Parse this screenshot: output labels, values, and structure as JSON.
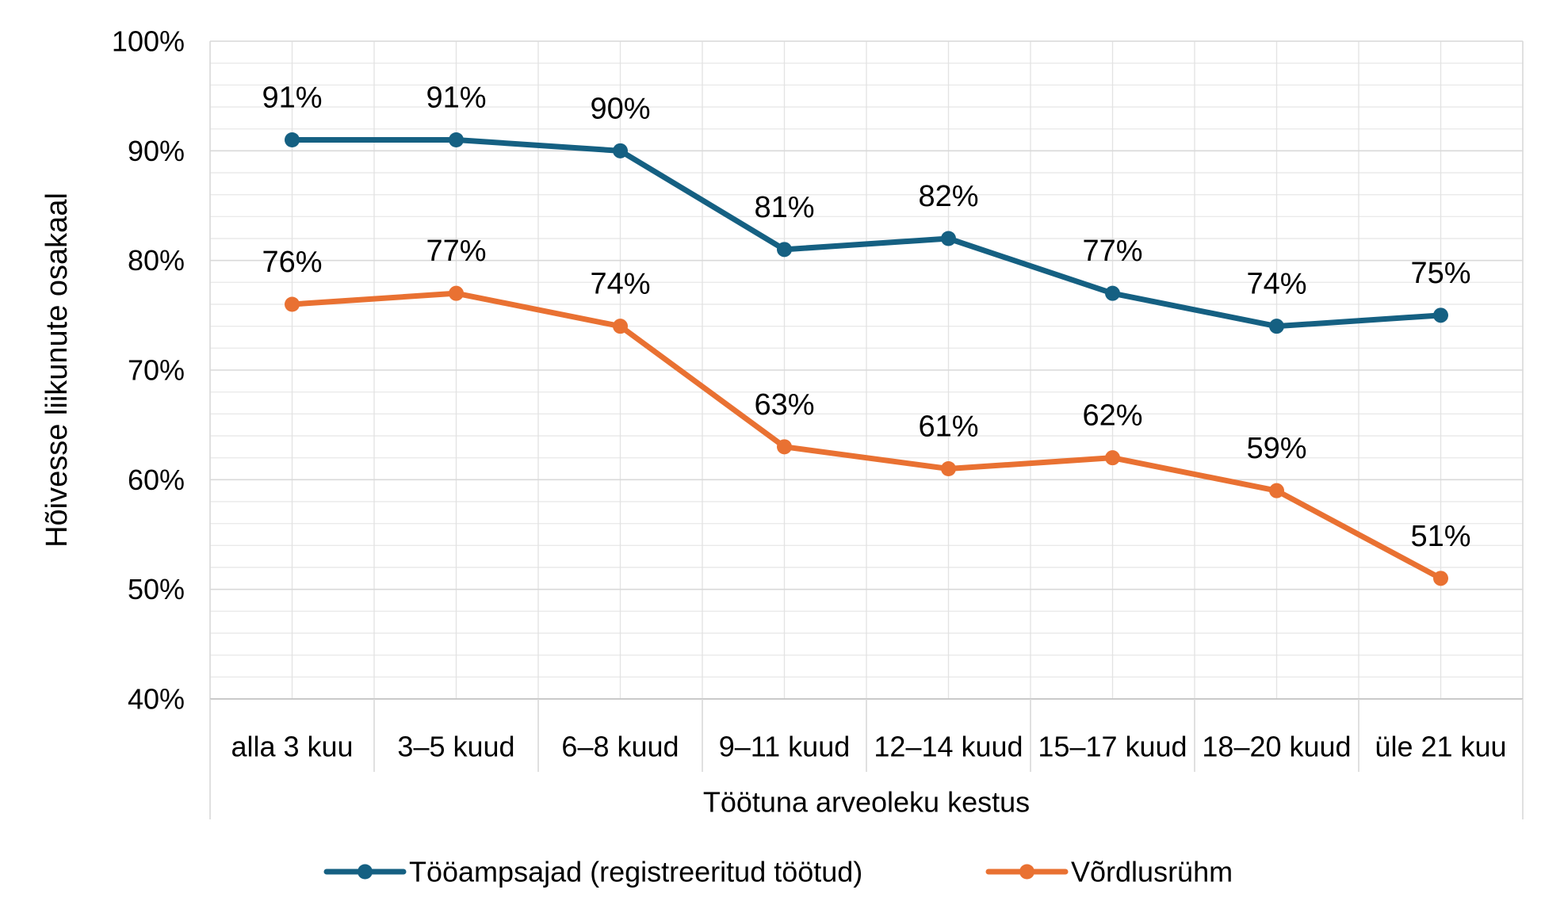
{
  "chart_data": {
    "type": "line",
    "categories": [
      "alla 3 kuu",
      "3–5 kuud",
      "6–8 kuud",
      "9–11 kuud",
      "12–14 kuud",
      "15–17 kuud",
      "18–20 kuud",
      "üle 21 kuu"
    ],
    "series": [
      {
        "name": "Tööampsajad (registreeritud töötud)",
        "color": "#156082",
        "values": [
          91,
          91,
          90,
          81,
          82,
          77,
          74,
          75
        ],
        "point_labels": [
          "91%",
          "91%",
          "90%",
          "81%",
          "82%",
          "77%",
          "74%",
          "75%"
        ]
      },
      {
        "name": "Võrdlusrühm",
        "color": "#E97132",
        "values": [
          76,
          77,
          74,
          63,
          61,
          62,
          59,
          51
        ],
        "point_labels": [
          "76%",
          "77%",
          "74%",
          "63%",
          "61%",
          "62%",
          "59%",
          "51%"
        ]
      }
    ],
    "title": "",
    "xlabel": "Töötuna arveoleku kestus",
    "ylabel": "Hõivesse liikunute osakaal",
    "ylim": [
      40,
      100
    ],
    "y_major_ticks": [
      {
        "value": 40,
        "label": "40%"
      },
      {
        "value": 50,
        "label": "50%"
      },
      {
        "value": 60,
        "label": "60%"
      },
      {
        "value": 70,
        "label": "70%"
      },
      {
        "value": 80,
        "label": "80%"
      },
      {
        "value": 90,
        "label": "90%"
      },
      {
        "value": 100,
        "label": "100%"
      }
    ],
    "y_minor_step": 2,
    "grid": true,
    "legend_position": "bottom",
    "marker": "circle"
  },
  "colors": {
    "series_blue": "#156082",
    "series_orange": "#E97132",
    "major_grid": "#D9D9D9",
    "minor_grid": "#EAEAEA",
    "axis": "#BFBFBF",
    "text": "#000000",
    "background": "#FFFFFF"
  }
}
